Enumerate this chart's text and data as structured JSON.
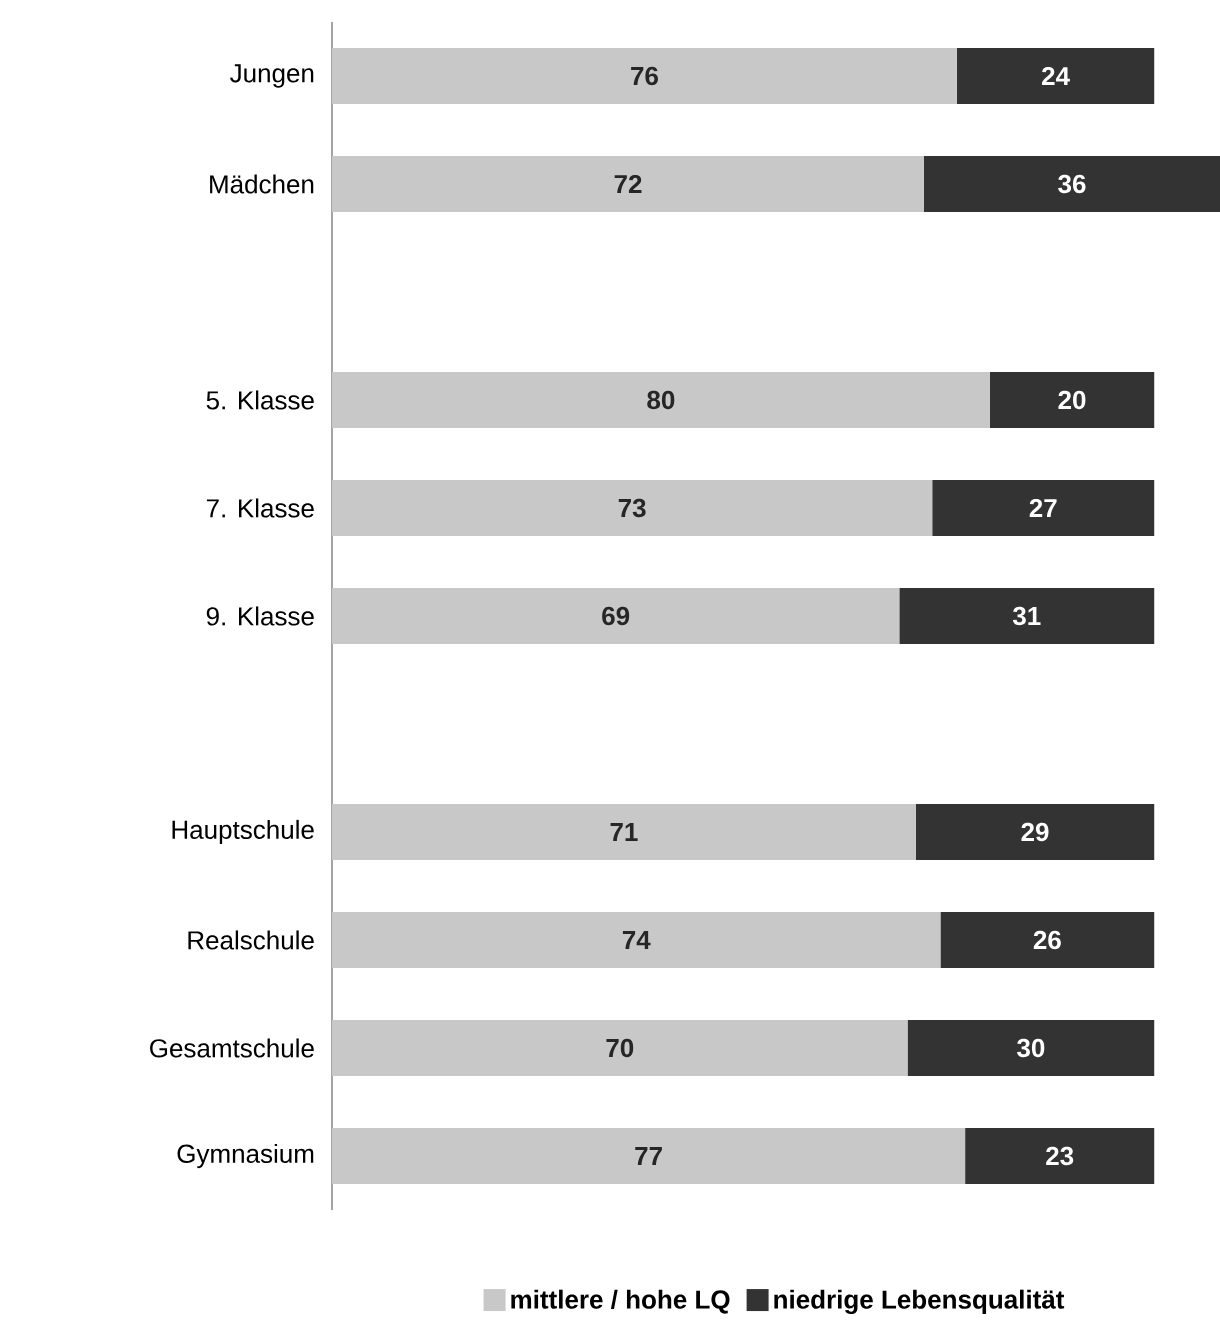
{
  "chart_data": {
    "type": "bar",
    "orientation": "horizontal",
    "stacked": true,
    "data_labels": true,
    "legend": "bottom",
    "categories": [
      "Jungen",
      "Mädchen",
      null,
      "5. Klasse",
      "7. Klasse",
      "9. Klasse",
      null,
      "Hauptschule",
      "Realschule",
      "Gesamtschule",
      "Gymnasium"
    ],
    "series": [
      {
        "name": "mittlere / hohe LQ",
        "color": "#c8c8c8",
        "values": [
          76,
          72,
          null,
          80,
          73,
          69,
          null,
          71,
          74,
          70,
          77
        ]
      },
      {
        "name": "niedrige Lebensqualität",
        "color": "#333333",
        "values": [
          24,
          36,
          null,
          20,
          27,
          31,
          null,
          29,
          26,
          30,
          23
        ]
      }
    ]
  }
}
